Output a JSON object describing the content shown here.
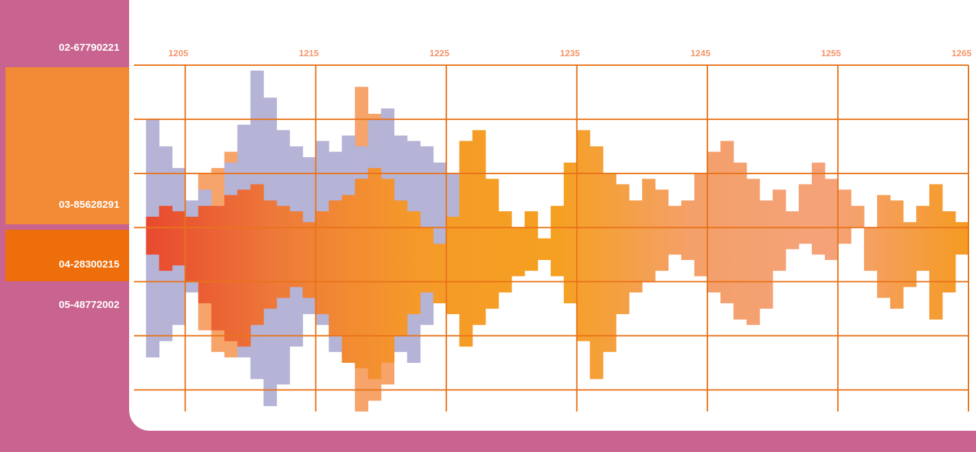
{
  "sidebar": {
    "items": [
      "02-67790221",
      "03-85628291",
      "04-28300215",
      "05-48772002"
    ]
  },
  "chart_data": {
    "type": "waveform",
    "xlim": [
      1201.6,
      1265
    ],
    "xticks": [
      1205,
      1215,
      1225,
      1235,
      1245,
      1255,
      1265
    ],
    "ylim": [
      -3.4,
      3
    ],
    "ygrid": [
      -3,
      -2,
      -1,
      0,
      1,
      2,
      3
    ],
    "grid": true,
    "grid_color": "#e8731a",
    "series": [
      {
        "color": "#f6a46a",
        "x": [
          1206,
          1207,
          1208,
          1209,
          1210,
          1217,
          1218,
          1219,
          1220
        ],
        "high": [
          1.0,
          1.1,
          1.4,
          1.6,
          1.4,
          1.3,
          2.6,
          2.1,
          1.6
        ],
        "low": [
          -1.9,
          -2.3,
          -2.4,
          -2.1,
          -1.7,
          -2.4,
          -3.4,
          -3.2,
          -2.9
        ]
      },
      {
        "color": "#b5b3d6",
        "x": [
          1202,
          1203,
          1204,
          1205,
          1206,
          1207,
          1208,
          1209,
          1210,
          1211,
          1212,
          1213,
          1214,
          1215,
          1216,
          1217,
          1218,
          1219,
          1220,
          1221,
          1222,
          1223,
          1224,
          1225,
          1226,
          1227
        ],
        "high": [
          2.0,
          1.5,
          1.1,
          0.5,
          0.7,
          0.2,
          1.2,
          1.9,
          2.9,
          2.4,
          1.8,
          1.5,
          1.3,
          1.6,
          1.4,
          1.7,
          1.5,
          2.0,
          2.2,
          1.7,
          1.6,
          1.5,
          1.2,
          1.0,
          1.4,
          1.2
        ],
        "low": [
          -2.4,
          -2.1,
          -1.8,
          -1.2,
          -1.0,
          -0.9,
          -1.4,
          -2.4,
          -2.8,
          -3.3,
          -2.9,
          -2.2,
          -1.6,
          -1.8,
          -2.3,
          -2.0,
          -1.8,
          -1.6,
          -1.9,
          -2.3,
          -2.5,
          -1.8,
          -1.3,
          -0.8,
          -0.7,
          -0.4
        ]
      },
      {
        "gradient": [
          "#e8472e",
          "#ee7a3a",
          "#f59a2a",
          "#f5a020",
          "#f4a06a",
          "#f5a27a",
          "#f59a20"
        ],
        "x": [
          1202,
          1203,
          1204,
          1205,
          1206,
          1207,
          1208,
          1209,
          1210,
          1211,
          1212,
          1213,
          1214,
          1215,
          1216,
          1217,
          1218,
          1219,
          1220,
          1221,
          1222,
          1223,
          1224,
          1225,
          1226,
          1227,
          1228,
          1229,
          1230,
          1231,
          1232,
          1233,
          1234,
          1235,
          1236,
          1237,
          1238,
          1239,
          1240,
          1241,
          1242,
          1243,
          1244,
          1245,
          1246,
          1247,
          1248,
          1249,
          1250,
          1251,
          1252,
          1253,
          1254,
          1255,
          1256,
          1257,
          1258,
          1259,
          1260,
          1261,
          1262,
          1263,
          1264
        ],
        "high": [
          0.2,
          0.4,
          0.3,
          0.2,
          0.4,
          0.4,
          0.6,
          0.7,
          0.8,
          0.5,
          0.4,
          0.3,
          0.1,
          0.3,
          0.5,
          0.6,
          0.9,
          1.1,
          0.9,
          0.5,
          0.3,
          0.0,
          -0.3,
          0.2,
          1.6,
          1.8,
          0.9,
          0.3,
          0.0,
          0.3,
          -0.2,
          0.4,
          1.2,
          1.8,
          1.5,
          1.0,
          0.8,
          0.5,
          0.9,
          0.7,
          0.4,
          0.5,
          1.0,
          1.4,
          1.6,
          1.2,
          0.9,
          0.5,
          0.7,
          0.3,
          0.8,
          1.2,
          0.9,
          0.7,
          0.4,
          0.0,
          0.6,
          0.5,
          0.1,
          0.4,
          0.8,
          0.3,
          0.1
        ],
        "low": [
          -0.5,
          -0.8,
          -0.7,
          -1.0,
          -1.4,
          -1.9,
          -2.1,
          -2.2,
          -1.8,
          -1.5,
          -1.3,
          -1.1,
          -1.3,
          -1.6,
          -2.0,
          -2.5,
          -2.6,
          -2.8,
          -2.5,
          -2.0,
          -1.6,
          -1.2,
          -1.4,
          -1.6,
          -2.2,
          -1.8,
          -1.5,
          -1.2,
          -0.9,
          -0.8,
          -0.6,
          -0.9,
          -1.4,
          -2.1,
          -2.8,
          -2.3,
          -1.6,
          -1.2,
          -1.0,
          -0.8,
          -0.5,
          -0.6,
          -0.9,
          -1.2,
          -1.4,
          -1.7,
          -1.8,
          -1.5,
          -0.8,
          -0.4,
          -0.3,
          -0.5,
          -0.6,
          -0.3,
          0.0,
          -0.8,
          -1.3,
          -1.5,
          -1.1,
          -0.8,
          -1.7,
          -1.2,
          -0.5
        ]
      }
    ]
  }
}
